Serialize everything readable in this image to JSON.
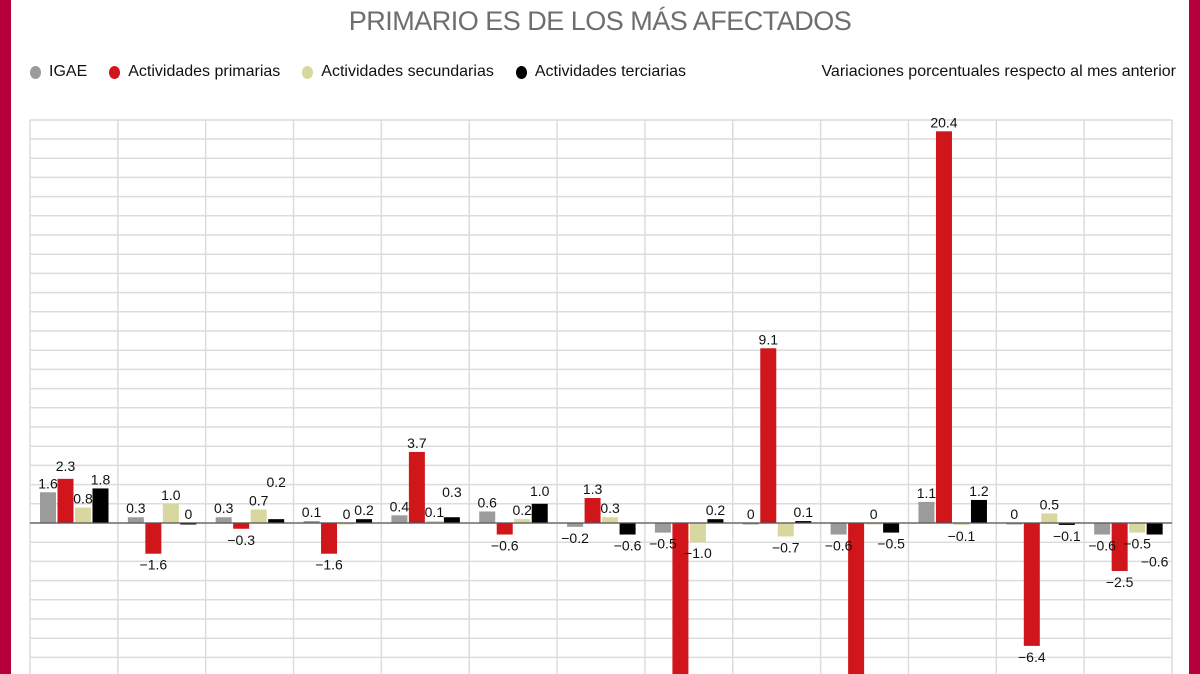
{
  "title": "PRIMARIO ES DE LOS MÁS AFECTADOS",
  "note": "Variaciones porcentuales respecto al mes anterior",
  "colors": {
    "border": "#b5003c",
    "IGAE": "#9b9b9b",
    "primarias": "#d0161b",
    "secundarias": "#d8d79f",
    "terciarias": "#000000"
  },
  "chart_data": {
    "type": "bar",
    "title": "PRIMARIO ES DE LOS MÁS AFECTADOS",
    "ylabel": "Variaciones porcentuales respecto al mes anterior",
    "legend_position": "top-left",
    "grid": true,
    "ylim": [
      -7.9,
      21
    ],
    "categories": [
      "",
      "",
      "",
      "",
      "",
      "",
      "",
      "",
      "",
      "",
      "",
      "",
      ""
    ],
    "series": [
      {
        "name": "IGAE",
        "color": "#9b9b9b",
        "values": [
          1.6,
          0.3,
          0.3,
          0.1,
          0.4,
          0.6,
          -0.2,
          -0.5,
          0,
          -0.6,
          1.1,
          0,
          -0.6
        ]
      },
      {
        "name": "Actividades primarias",
        "color": "#d0161b",
        "values": [
          2.3,
          -1.6,
          -0.3,
          -1.6,
          3.7,
          -0.6,
          1.3,
          null,
          9.1,
          null,
          20.4,
          -6.4,
          -2.5
        ]
      },
      {
        "name": "Actividades secundarias",
        "color": "#d8d79f",
        "values": [
          0.8,
          1.0,
          0.7,
          0,
          0.1,
          0.2,
          0.3,
          -1.0,
          -0.7,
          0,
          -0.1,
          0.5,
          -0.5
        ]
      },
      {
        "name": "Actividades terciarias",
        "color": "#000000",
        "values": [
          1.8,
          0,
          0.2,
          0.2,
          0.3,
          1.0,
          -0.6,
          0.2,
          0.1,
          -0.5,
          1.2,
          -0.1,
          -0.6
        ]
      }
    ]
  }
}
